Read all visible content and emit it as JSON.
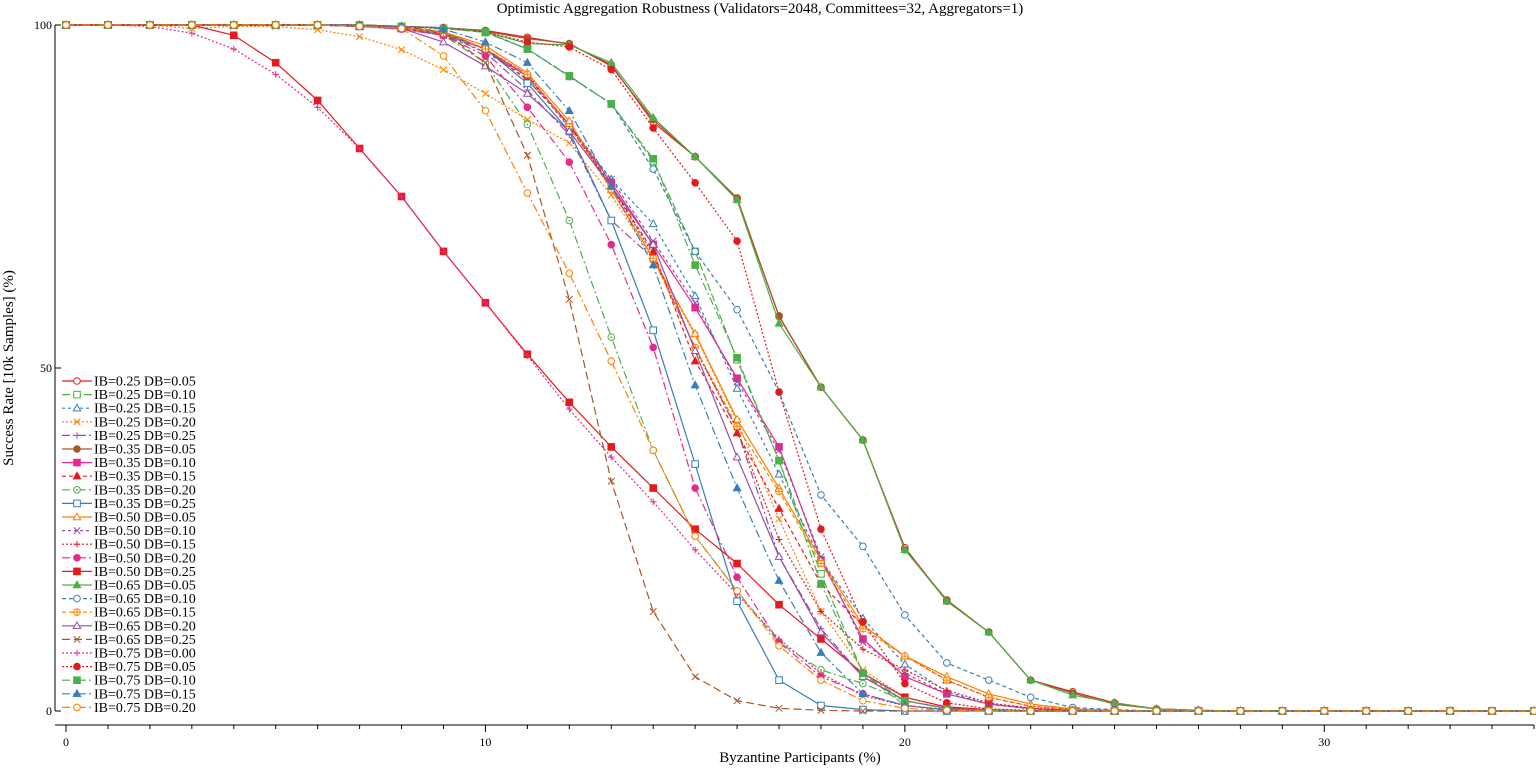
{
  "chart_data": {
    "type": "line",
    "title": "Optimistic Aggregation Robustness (Validators=2048, Committees=32, Aggregators=1)",
    "xlabel": "Byzantine Participants (%)",
    "ylabel": "Success Rate [10k Samples] (%)",
    "xlim": [
      0,
      35
    ],
    "ylim": [
      0,
      100
    ],
    "x_ticks": [
      0,
      10,
      20,
      30
    ],
    "y_ticks": [
      0,
      50,
      100
    ],
    "grid": false,
    "legend_position": "bottom-left",
    "x": [
      0,
      1,
      2,
      3,
      4,
      5,
      6,
      7,
      8,
      9,
      10,
      11,
      12,
      13,
      14,
      15,
      16,
      17,
      18,
      19,
      20,
      21,
      22,
      23,
      24,
      25,
      26,
      27,
      28,
      29,
      30,
      31,
      32,
      33,
      34,
      35
    ],
    "series": [
      {
        "name": "IB=0.25 DB=0.05",
        "color": "#e41a1c",
        "dash": "",
        "marker": "circle-open",
        "values": [
          100,
          100,
          100,
          100,
          100,
          100,
          100,
          100,
          99.8,
          99.6,
          99.2,
          98.2,
          97.2,
          94.2,
          85.8,
          80.8,
          74.6,
          57.6,
          47.2,
          39.5,
          23.8,
          16.0,
          11.5,
          4.5,
          2.8,
          1.2,
          0.3,
          0.1,
          0,
          0,
          0,
          0,
          0,
          0,
          0,
          0
        ]
      },
      {
        "name": "IB=0.25 DB=0.10",
        "color": "#4daf4a",
        "dash": "8,3",
        "marker": "square-open",
        "values": [
          100,
          100,
          100,
          100,
          100,
          100,
          100,
          100,
          99.8,
          99.5,
          98.9,
          96.5,
          92.6,
          88.5,
          80.2,
          67.0,
          51.2,
          36.5,
          20.0,
          5.5,
          0.8,
          0.1,
          0,
          0,
          0,
          0,
          0,
          0,
          0,
          0,
          0,
          0,
          0,
          0,
          0,
          0
        ]
      },
      {
        "name": "IB=0.25 DB=0.15",
        "color": "#377eb8",
        "dash": "3,3",
        "marker": "triangle-open",
        "values": [
          100,
          100,
          100,
          100,
          100,
          100,
          100,
          100,
          99.7,
          99.0,
          96.5,
          92.0,
          85.5,
          77.5,
          71.0,
          60.5,
          47.0,
          34.5,
          22.0,
          13.5,
          6.8,
          2.8,
          1.0,
          0.3,
          0.1,
          0,
          0,
          0,
          0,
          0,
          0,
          0,
          0,
          0,
          0,
          0
        ]
      },
      {
        "name": "IB=0.25 DB=0.20",
        "color": "#ff7f00",
        "dash": "2,2",
        "marker": "x",
        "values": [
          100,
          100,
          100,
          99.5,
          99.8,
          99.8,
          99.3,
          98.3,
          96.4,
          93.5,
          90.0,
          86.2,
          82.8,
          75.2,
          65.8,
          54.8,
          42.2,
          28.0,
          14.5,
          6.0,
          2.0,
          0.5,
          0.1,
          0,
          0,
          0,
          0,
          0,
          0,
          0,
          0,
          0,
          0,
          0,
          0,
          0
        ]
      },
      {
        "name": "IB=0.25 DB=0.25",
        "color": "#984ea3",
        "dash": "8,3,2,3",
        "marker": "plus",
        "values": [
          100,
          100,
          100,
          100,
          100,
          100,
          100,
          99.8,
          99.5,
          98.8,
          96.0,
          90.5,
          84.0,
          71.5,
          66.0,
          53.0,
          41.0,
          22.5,
          12.0,
          5.0,
          1.5,
          0.4,
          0.1,
          0,
          0,
          0,
          0,
          0,
          0,
          0,
          0,
          0,
          0,
          0,
          0,
          0
        ]
      },
      {
        "name": "IB=0.35 DB=0.05",
        "color": "#a65628",
        "dash": "",
        "marker": "circle",
        "values": [
          100,
          100,
          100,
          100,
          100,
          100,
          100,
          100,
          99.8,
          99.6,
          99.1,
          98.0,
          97.3,
          94.0,
          86.2,
          80.8,
          74.8,
          57.5,
          47.2,
          39.5,
          23.5,
          16.2,
          11.5,
          4.5,
          2.6,
          1.0,
          0.3,
          0.1,
          0,
          0,
          0,
          0,
          0,
          0,
          0,
          0
        ]
      },
      {
        "name": "IB=0.35 DB=0.10",
        "color": "#e7298a",
        "dash": "",
        "marker": "square",
        "values": [
          100,
          100,
          100,
          100,
          100,
          100,
          100,
          99.8,
          99.6,
          98.8,
          96.5,
          92.5,
          85.5,
          77.0,
          68.0,
          58.8,
          48.5,
          38.5,
          22.0,
          10.5,
          5.0,
          2.5,
          1.0,
          0.4,
          0.1,
          0,
          0,
          0,
          0,
          0,
          0,
          0,
          0,
          0,
          0,
          0
        ]
      },
      {
        "name": "IB=0.35 DB=0.15",
        "color": "#e41a1c",
        "dash": "4,3",
        "marker": "triangle",
        "values": [
          100,
          100,
          100,
          100,
          100,
          100,
          100,
          99.8,
          99.5,
          99.0,
          96.5,
          92.0,
          85.5,
          76.5,
          67.0,
          51.0,
          40.5,
          29.5,
          18.5,
          12.5,
          8.0,
          4.5,
          2.0,
          0.7,
          0.2,
          0,
          0,
          0,
          0,
          0,
          0,
          0,
          0,
          0,
          0,
          0
        ]
      },
      {
        "name": "IB=0.35 DB=0.20",
        "color": "#4daf4a",
        "dash": "8,3,2,3",
        "marker": "circle-dot",
        "values": [
          100,
          100,
          100,
          100,
          100,
          100,
          100,
          99.8,
          99.4,
          98.5,
          94.5,
          85.5,
          71.5,
          54.5,
          38.0,
          25.5,
          17.5,
          10.0,
          6.0,
          4.0,
          1.5,
          0.4,
          0.1,
          0,
          0,
          0,
          0,
          0,
          0,
          0,
          0,
          0,
          0,
          0,
          0,
          0
        ]
      },
      {
        "name": "IB=0.35 DB=0.25",
        "color": "#377eb8",
        "dash": "",
        "marker": "square-open",
        "values": [
          100,
          100,
          100,
          100,
          100,
          100,
          100,
          99.8,
          99.5,
          98.6,
          96.5,
          91.5,
          84.5,
          71.5,
          55.5,
          36.0,
          16.0,
          4.5,
          0.8,
          0.2,
          0,
          0,
          0,
          0,
          0,
          0,
          0,
          0,
          0,
          0,
          0,
          0,
          0,
          0,
          0,
          0
        ]
      },
      {
        "name": "IB=0.50 DB=0.05",
        "color": "#ff7f00",
        "dash": "",
        "marker": "triangle-open",
        "values": [
          100,
          100,
          100,
          100,
          100,
          100,
          100,
          99.8,
          99.6,
          99.0,
          97.0,
          93.0,
          86.0,
          76.0,
          66.0,
          55.0,
          42.5,
          32.5,
          22.0,
          12.5,
          8.0,
          5.0,
          2.5,
          1.0,
          0.3,
          0.1,
          0,
          0,
          0,
          0,
          0,
          0,
          0,
          0,
          0,
          0
        ]
      },
      {
        "name": "IB=0.50 DB=0.10",
        "color": "#984ea3",
        "dash": "3,3",
        "marker": "x",
        "values": [
          100,
          100,
          100,
          100,
          100,
          100,
          100,
          99.8,
          99.4,
          98.5,
          96.0,
          92.5,
          85.0,
          77.5,
          68.5,
          59.5,
          48.0,
          38.0,
          22.5,
          10.0,
          5.5,
          2.5,
          1.0,
          0.3,
          0.1,
          0,
          0,
          0,
          0,
          0,
          0,
          0,
          0,
          0,
          0,
          0
        ]
      },
      {
        "name": "IB=0.50 DB=0.15",
        "color": "#e41a1c",
        "dash": "2,2",
        "marker": "plus",
        "values": [
          100,
          100,
          100,
          100,
          100,
          100,
          100,
          99.8,
          99.5,
          98.8,
          96.5,
          92.8,
          85.2,
          76.5,
          66.5,
          52.8,
          41.0,
          25.0,
          14.5,
          9.0,
          6.0,
          3.0,
          1.2,
          0.4,
          0.1,
          0,
          0,
          0,
          0,
          0,
          0,
          0,
          0,
          0,
          0,
          0
        ]
      },
      {
        "name": "IB=0.50 DB=0.20",
        "color": "#e7298a",
        "dash": "8,3,2,3",
        "marker": "circle",
        "values": [
          100,
          100,
          100,
          100,
          100,
          100,
          100,
          99.8,
          99.4,
          98.5,
          95.5,
          88.0,
          80.0,
          68.0,
          53.0,
          32.5,
          19.5,
          10.0,
          5.0,
          2.5,
          0.8,
          0.2,
          0,
          0,
          0,
          0,
          0,
          0,
          0,
          0,
          0,
          0,
          0,
          0,
          0,
          0
        ]
      },
      {
        "name": "IB=0.50 DB=0.25",
        "color": "#e41a1c",
        "dash": "",
        "marker": "square",
        "values": [
          100,
          100,
          100,
          100,
          98.5,
          94.5,
          89.0,
          82.0,
          75.0,
          67.0,
          59.5,
          52.0,
          45.0,
          38.5,
          32.5,
          26.5,
          21.5,
          15.5,
          10.5,
          5.5,
          2.0,
          0.6,
          0.2,
          0,
          0,
          0,
          0,
          0,
          0,
          0,
          0,
          0,
          0,
          0,
          0,
          0
        ]
      },
      {
        "name": "IB=0.65 DB=0.05",
        "color": "#4daf4a",
        "dash": "",
        "marker": "triangle",
        "values": [
          100,
          100,
          100,
          100,
          100,
          100,
          100,
          100,
          99.8,
          99.6,
          99.0,
          97.3,
          97.1,
          94.5,
          86.5,
          80.8,
          74.5,
          56.5,
          47.2,
          39.5,
          23.5,
          16.0,
          11.5,
          4.5,
          2.3,
          1.2,
          0.3,
          0.1,
          0,
          0,
          0,
          0,
          0,
          0,
          0,
          0
        ]
      },
      {
        "name": "IB=0.65 DB=0.10",
        "color": "#377eb8",
        "dash": "4,3",
        "marker": "circle-open",
        "values": [
          100,
          100,
          100,
          100,
          100,
          100,
          100,
          100,
          99.8,
          99.5,
          99.0,
          96.5,
          92.5,
          88.5,
          79.0,
          67.0,
          58.5,
          46.5,
          31.5,
          24.0,
          14.0,
          7.0,
          4.5,
          2.0,
          0.5,
          0.2,
          0,
          0,
          0,
          0,
          0,
          0,
          0,
          0,
          0,
          0
        ]
      },
      {
        "name": "IB=0.65 DB=0.15",
        "color": "#ff7f00",
        "dash": "4,3",
        "marker": "circle-cross",
        "values": [
          100,
          100,
          100,
          100,
          100,
          100,
          100,
          99.8,
          99.5,
          98.8,
          96.5,
          92.8,
          85.2,
          76.0,
          66.0,
          53.0,
          41.5,
          32.0,
          21.5,
          12.0,
          8.0,
          4.5,
          2.0,
          0.7,
          0.2,
          0,
          0,
          0,
          0,
          0,
          0,
          0,
          0,
          0,
          0,
          0
        ]
      },
      {
        "name": "IB=0.65 DB=0.20",
        "color": "#984ea3",
        "dash": "",
        "marker": "triangle-open",
        "values": [
          100,
          100,
          100,
          100,
          100,
          100,
          100,
          99.8,
          99.5,
          97.5,
          94.0,
          90.0,
          84.5,
          76.5,
          68.0,
          52.5,
          37.0,
          22.5,
          11.5,
          5.0,
          1.5,
          0.4,
          0.1,
          0,
          0,
          0,
          0,
          0,
          0,
          0,
          0,
          0,
          0,
          0,
          0,
          0
        ]
      },
      {
        "name": "IB=0.65 DB=0.25",
        "color": "#a65628",
        "dash": "8,4",
        "marker": "x",
        "values": [
          100,
          100,
          100,
          100,
          100,
          100,
          100,
          100,
          99.8,
          99.0,
          94.5,
          81.0,
          60.0,
          33.5,
          14.5,
          5.0,
          1.5,
          0.4,
          0.1,
          0,
          0,
          0,
          0,
          0,
          0,
          0,
          0,
          0,
          0,
          0,
          0,
          0,
          0,
          0,
          0,
          0
        ]
      },
      {
        "name": "IB=0.75 DB=0.00",
        "color": "#e7298a",
        "dash": "2,2",
        "marker": "plus",
        "values": [
          100,
          100,
          99.8,
          98.8,
          96.5,
          92.8,
          88.0,
          82.0,
          75.0,
          67.0,
          59.5,
          51.8,
          44.0,
          37.0,
          30.5,
          23.5,
          17.0,
          10.5,
          5.5,
          2.2,
          0.8,
          0.2,
          0,
          0,
          0,
          0,
          0,
          0,
          0,
          0,
          0,
          0,
          0,
          0,
          0,
          0
        ]
      },
      {
        "name": "IB=0.75 DB=0.05",
        "color": "#e41a1c",
        "dash": "2,2",
        "marker": "circle",
        "values": [
          100,
          100,
          100,
          100,
          100,
          100,
          100,
          100,
          99.8,
          99.6,
          99.0,
          97.5,
          96.8,
          93.5,
          85.0,
          77.0,
          68.5,
          46.5,
          26.5,
          13.0,
          4.0,
          1.2,
          0.3,
          0.1,
          0,
          0,
          0,
          0,
          0,
          0,
          0,
          0,
          0,
          0,
          0,
          0
        ]
      },
      {
        "name": "IB=0.75 DB=0.10",
        "color": "#4daf4a",
        "dash": "8,3,2,3",
        "marker": "square",
        "values": [
          100,
          100,
          100,
          100,
          100,
          100,
          100,
          100,
          99.8,
          99.5,
          99.0,
          96.5,
          92.5,
          88.5,
          80.5,
          65.0,
          51.5,
          36.5,
          18.5,
          5.5,
          1.5,
          0.3,
          0.1,
          0,
          0,
          0,
          0,
          0,
          0,
          0,
          0,
          0,
          0,
          0,
          0,
          0
        ]
      },
      {
        "name": "IB=0.75 DB=0.15",
        "color": "#377eb8",
        "dash": "8,3,2,3",
        "marker": "triangle",
        "values": [
          100,
          100,
          100,
          100,
          100,
          100,
          100,
          100,
          99.8,
          99.4,
          97.5,
          94.5,
          87.5,
          76.5,
          65.0,
          47.5,
          32.5,
          19.0,
          8.5,
          2.5,
          0.8,
          0.2,
          0,
          0,
          0,
          0,
          0,
          0,
          0,
          0,
          0,
          0,
          0,
          0,
          0,
          0
        ]
      },
      {
        "name": "IB=0.75 DB=0.20",
        "color": "#ff7f00",
        "dash": "8,3,2,3",
        "marker": "circle-open",
        "values": [
          100,
          100,
          100,
          100,
          100,
          100,
          100,
          99.8,
          99.5,
          95.5,
          87.5,
          75.5,
          63.8,
          51.0,
          38.0,
          25.5,
          17.5,
          9.5,
          4.5,
          1.5,
          0.4,
          0.1,
          0,
          0,
          0,
          0,
          0,
          0,
          0,
          0,
          0,
          0,
          0,
          0,
          0,
          0
        ]
      }
    ]
  }
}
